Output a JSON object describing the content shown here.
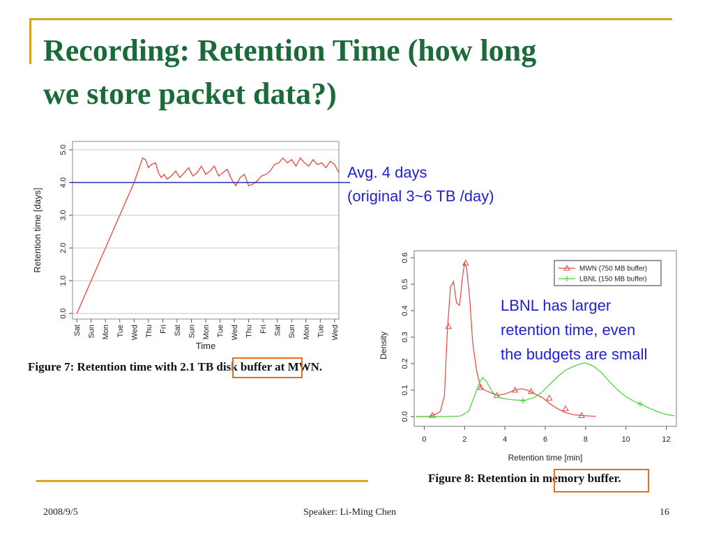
{
  "slide": {
    "title_lines": [
      "Recording: Retention Time (how long",
      "we store packet data?)"
    ],
    "note1_lines": [
      "Avg. 4 days",
      "(original 3~6 TB /day)"
    ],
    "note2_lines": [
      "LBNL has larger",
      "retention time, even",
      "the budgets are small"
    ],
    "caption1": "Figure 7: Retention time with 2.1 TB disk buffer at MWN.",
    "caption2": "Figure 8: Retention in memory buffer.",
    "footer": {
      "date": "2008/9/5",
      "speaker": "Speaker: Li-Ming Chen",
      "page": "16"
    },
    "colors": {
      "title": "#1b6b3a",
      "accent": "#d9a521",
      "note": "#1f1fd6",
      "highlight": "#e07020",
      "series_red": "#e8453c",
      "series_green": "#4ccf3c",
      "avg_line": "#2233aa"
    }
  },
  "chart_data": [
    {
      "type": "line",
      "title": "",
      "xlabel": "Time",
      "ylabel": "Retention time [days]",
      "ylim": [
        0,
        5
      ],
      "yticks": [
        "0.0",
        "1.0",
        "2.0",
        "3.0",
        "4.0",
        "5.0"
      ],
      "categories": [
        "Sat",
        "Sun",
        "Mon",
        "Tue",
        "Wed",
        "Thu",
        "Fri",
        "Sat",
        "Sun",
        "Mon",
        "Tue",
        "Wed",
        "Thu",
        "Fri",
        "Sat",
        "Sun",
        "Mon",
        "Tue",
        "Wed"
      ],
      "grid": true,
      "series": [
        {
          "x": [
            0,
            4.0,
            4.4,
            4.6,
            4.8,
            5.0,
            5.2,
            5.5,
            5.7,
            5.9,
            6.1,
            6.3,
            6.6,
            6.9,
            7.2,
            7.5,
            7.8,
            8.1,
            8.4,
            8.7,
            9.0,
            9.3,
            9.6,
            9.9,
            10.2,
            10.5,
            10.8,
            11.1,
            11.4,
            11.7,
            12.0,
            12.3,
            12.6,
            12.9,
            13.2,
            13.5,
            13.8,
            14.1,
            14.4,
            14.7,
            15.0,
            15.3,
            15.6,
            15.9,
            16.2,
            16.5,
            16.8,
            17.1,
            17.4,
            17.7,
            18.0,
            18.3
          ],
          "y": [
            0,
            4.0,
            4.5,
            4.75,
            4.7,
            4.45,
            4.55,
            4.6,
            4.3,
            4.15,
            4.25,
            4.1,
            4.2,
            4.35,
            4.15,
            4.3,
            4.45,
            4.2,
            4.3,
            4.5,
            4.25,
            4.35,
            4.5,
            4.2,
            4.3,
            4.4,
            4.1,
            3.9,
            4.15,
            4.25,
            3.9,
            3.95,
            4.05,
            4.2,
            4.25,
            4.35,
            4.55,
            4.6,
            4.75,
            4.6,
            4.7,
            4.5,
            4.75,
            4.6,
            4.5,
            4.7,
            4.55,
            4.6,
            4.45,
            4.65,
            4.55,
            4.3
          ]
        }
      ],
      "reference_line": 4.0
    },
    {
      "type": "line",
      "title": "",
      "xlabel": "Retention time [min]",
      "ylabel": "Density",
      "xlim": [
        -0.5,
        12.5
      ],
      "ylim": [
        0,
        0.6
      ],
      "xticks": [
        "0",
        "2",
        "4",
        "6",
        "8",
        "10",
        "12"
      ],
      "yticks": [
        "0.0",
        "0.1",
        "0.2",
        "0.3",
        "0.4",
        "0.5",
        "0.6"
      ],
      "legend": "top-right",
      "series": [
        {
          "name": "MWN (750 MB buffer)",
          "color": "#e8453c",
          "marker": "triangle",
          "x": [
            -0.4,
            0.2,
            0.4,
            0.6,
            0.8,
            1.0,
            1.15,
            1.3,
            1.45,
            1.6,
            1.75,
            1.9,
            2.0,
            2.1,
            2.25,
            2.4,
            2.6,
            2.8,
            3.0,
            3.3,
            3.6,
            4.0,
            4.5,
            4.8,
            5.1,
            5.5,
            5.9,
            6.2,
            6.6,
            7.0,
            7.4,
            7.8,
            8.2,
            8.5
          ],
          "y": [
            0.0,
            0.0,
            0.005,
            0.01,
            0.02,
            0.08,
            0.33,
            0.49,
            0.51,
            0.43,
            0.42,
            0.53,
            0.58,
            0.56,
            0.45,
            0.28,
            0.17,
            0.11,
            0.1,
            0.09,
            0.08,
            0.085,
            0.1,
            0.105,
            0.1,
            0.085,
            0.07,
            0.05,
            0.03,
            0.015,
            0.007,
            0.004,
            0.002,
            0.001
          ],
          "marker_x": [
            0.4,
            1.2,
            2.05,
            2.8,
            3.6,
            4.5,
            5.3,
            6.2,
            7.0,
            7.8
          ],
          "marker_y": [
            0.005,
            0.34,
            0.58,
            0.11,
            0.08,
            0.1,
            0.095,
            0.07,
            0.03,
            0.004
          ]
        },
        {
          "name": "LBNL (150 MB buffer)",
          "color": "#4ccf3c",
          "marker": "plus",
          "x": [
            -0.4,
            1.0,
            1.8,
            2.2,
            2.5,
            2.75,
            2.9,
            3.1,
            3.4,
            3.8,
            4.2,
            4.6,
            5.0,
            5.4,
            5.8,
            6.2,
            6.6,
            7.0,
            7.4,
            7.8,
            8.0,
            8.4,
            8.8,
            9.2,
            9.6,
            10.0,
            10.4,
            10.8,
            11.2,
            11.6,
            12.0,
            12.4
          ],
          "y": [
            0.0,
            0.0,
            0.002,
            0.02,
            0.08,
            0.13,
            0.148,
            0.13,
            0.09,
            0.07,
            0.065,
            0.062,
            0.062,
            0.07,
            0.09,
            0.12,
            0.15,
            0.175,
            0.19,
            0.2,
            0.203,
            0.19,
            0.165,
            0.13,
            0.1,
            0.075,
            0.058,
            0.045,
            0.03,
            0.018,
            0.008,
            0.003
          ],
          "marker_x": [
            4.9,
            10.7
          ],
          "marker_y": [
            0.06,
            0.048
          ]
        }
      ]
    }
  ]
}
